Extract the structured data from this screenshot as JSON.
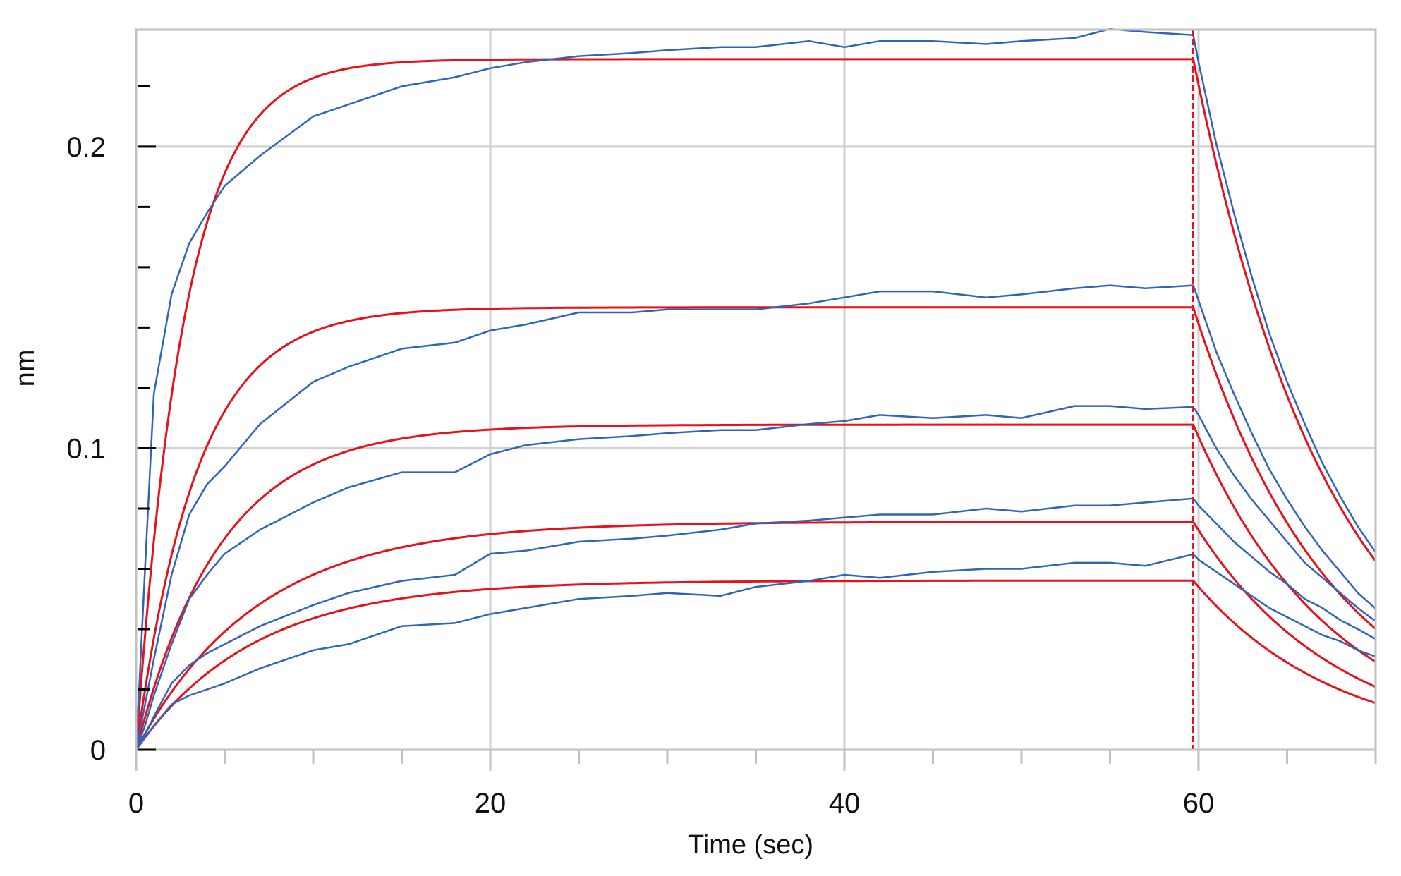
{
  "chart_data": {
    "type": "line",
    "title": "",
    "xlabel": "Time (sec)",
    "ylabel": "nm",
    "xlim": [
      0,
      70
    ],
    "ylim": [
      0,
      0.2388
    ],
    "grid": true,
    "legend": null,
    "x_major_ticks": [
      0,
      20,
      40,
      60
    ],
    "x_tick_labels": [
      "0",
      "20",
      "40",
      "60"
    ],
    "x_minor_tick_step": 5,
    "y_major_ticks": [
      0,
      0.1,
      0.2
    ],
    "y_tick_labels": [
      "0",
      "0.1",
      "0.2"
    ],
    "y_minor_tick_step": 0.02,
    "annotations": [
      {
        "type": "vertical-dashed-line",
        "x": 59.7,
        "color": "#e8101a",
        "meaning": "association/dissociation switch"
      }
    ],
    "colors": {
      "data": "#2f64b8",
      "fit": "#e8101a",
      "grid": "#cfcfcf",
      "frame": "#c0c0c0"
    },
    "data_x": [
      0,
      0.5,
      1,
      2,
      3,
      4,
      5,
      7,
      10,
      12,
      15,
      18,
      20,
      22,
      25,
      28,
      30,
      33,
      35,
      38,
      40,
      42,
      45,
      48,
      50,
      53,
      55,
      57,
      59.7,
      60,
      61,
      62,
      63,
      64,
      65,
      66,
      67,
      68,
      69,
      70
    ],
    "series": [
      {
        "name": "data-1",
        "kind": "measured",
        "color": "#2f64b8",
        "values": [
          0,
          0.06,
          0.118,
          0.151,
          0.168,
          0.178,
          0.187,
          0.197,
          0.21,
          0.214,
          0.22,
          0.223,
          0.226,
          0.228,
          0.23,
          0.231,
          0.232,
          0.233,
          0.233,
          0.235,
          0.233,
          0.235,
          0.235,
          0.234,
          0.235,
          0.236,
          0.239,
          0.238,
          0.237,
          0.228,
          0.201,
          0.178,
          0.157,
          0.138,
          0.122,
          0.108,
          0.095,
          0.084,
          0.074,
          0.0655
        ]
      },
      {
        "name": "data-2",
        "kind": "measured",
        "color": "#2f64b8",
        "values": [
          0,
          0.015,
          0.03,
          0.058,
          0.078,
          0.088,
          0.094,
          0.108,
          0.122,
          0.127,
          0.133,
          0.135,
          0.139,
          0.141,
          0.145,
          0.145,
          0.146,
          0.146,
          0.146,
          0.148,
          0.15,
          0.152,
          0.152,
          0.15,
          0.151,
          0.153,
          0.154,
          0.153,
          0.154,
          0.149,
          0.132,
          0.118,
          0.105,
          0.093,
          0.083,
          0.074,
          0.066,
          0.059,
          0.052,
          0.0468
        ]
      },
      {
        "name": "data-3",
        "kind": "measured",
        "color": "#2f64b8",
        "values": [
          0,
          0.008,
          0.018,
          0.035,
          0.05,
          0.058,
          0.065,
          0.073,
          0.082,
          0.087,
          0.092,
          0.092,
          0.098,
          0.101,
          0.103,
          0.104,
          0.105,
          0.106,
          0.106,
          0.108,
          0.109,
          0.111,
          0.11,
          0.111,
          0.11,
          0.114,
          0.114,
          0.113,
          0.1137,
          0.111,
          0.1,
          0.091,
          0.083,
          0.076,
          0.069,
          0.062,
          0.057,
          0.052,
          0.047,
          0.0426
        ]
      },
      {
        "name": "data-4",
        "kind": "measured",
        "color": "#2f64b8",
        "values": [
          0,
          0.005,
          0.011,
          0.022,
          0.028,
          0.032,
          0.035,
          0.041,
          0.048,
          0.052,
          0.056,
          0.058,
          0.065,
          0.066,
          0.069,
          0.07,
          0.071,
          0.073,
          0.075,
          0.076,
          0.077,
          0.078,
          0.078,
          0.08,
          0.079,
          0.081,
          0.081,
          0.082,
          0.0833,
          0.081,
          0.075,
          0.069,
          0.064,
          0.059,
          0.055,
          0.05,
          0.047,
          0.043,
          0.04,
          0.0367
        ]
      },
      {
        "name": "data-5",
        "kind": "measured",
        "color": "#2f64b8",
        "values": [
          0,
          0.004,
          0.008,
          0.015,
          0.018,
          0.02,
          0.022,
          0.027,
          0.033,
          0.035,
          0.041,
          0.042,
          0.045,
          0.047,
          0.05,
          0.051,
          0.052,
          0.051,
          0.054,
          0.056,
          0.058,
          0.057,
          0.059,
          0.06,
          0.06,
          0.062,
          0.062,
          0.061,
          0.0648,
          0.063,
          0.059,
          0.055,
          0.051,
          0.047,
          0.044,
          0.041,
          0.038,
          0.036,
          0.033,
          0.0309
        ]
      }
    ],
    "fits": [
      {
        "name": "fit-1",
        "kind": "fit",
        "color": "#e8101a",
        "rmax": 0.229,
        "kobs": 0.36,
        "kdis": 0.126,
        "plateau_at_60": 0.229,
        "value_at_70": 0.062
      },
      {
        "name": "fit-2",
        "kind": "fit",
        "color": "#e8101a",
        "rmax": 0.1467,
        "kobs": 0.29,
        "kdis": 0.126,
        "plateau_at_60": 0.1467,
        "value_at_70": 0.04
      },
      {
        "name": "fit-3",
        "kind": "fit",
        "color": "#e8101a",
        "rmax": 0.1078,
        "kobs": 0.21,
        "kdis": 0.127,
        "plateau_at_60": 0.1078,
        "value_at_70": 0.029
      },
      {
        "name": "fit-4",
        "kind": "fit",
        "color": "#e8101a",
        "rmax": 0.0756,
        "kobs": 0.146,
        "kdis": 0.125,
        "plateau_at_60": 0.0756,
        "value_at_70": 0.0208
      },
      {
        "name": "fit-5",
        "kind": "fit",
        "color": "#e8101a",
        "rmax": 0.0561,
        "kobs": 0.15,
        "kdis": 0.125,
        "plateau_at_60": 0.0561,
        "value_at_70": 0.0154
      }
    ],
    "fit_switch_time": 59.7
  },
  "axes": {
    "x_title": "Time (sec)",
    "y_title": "nm"
  }
}
